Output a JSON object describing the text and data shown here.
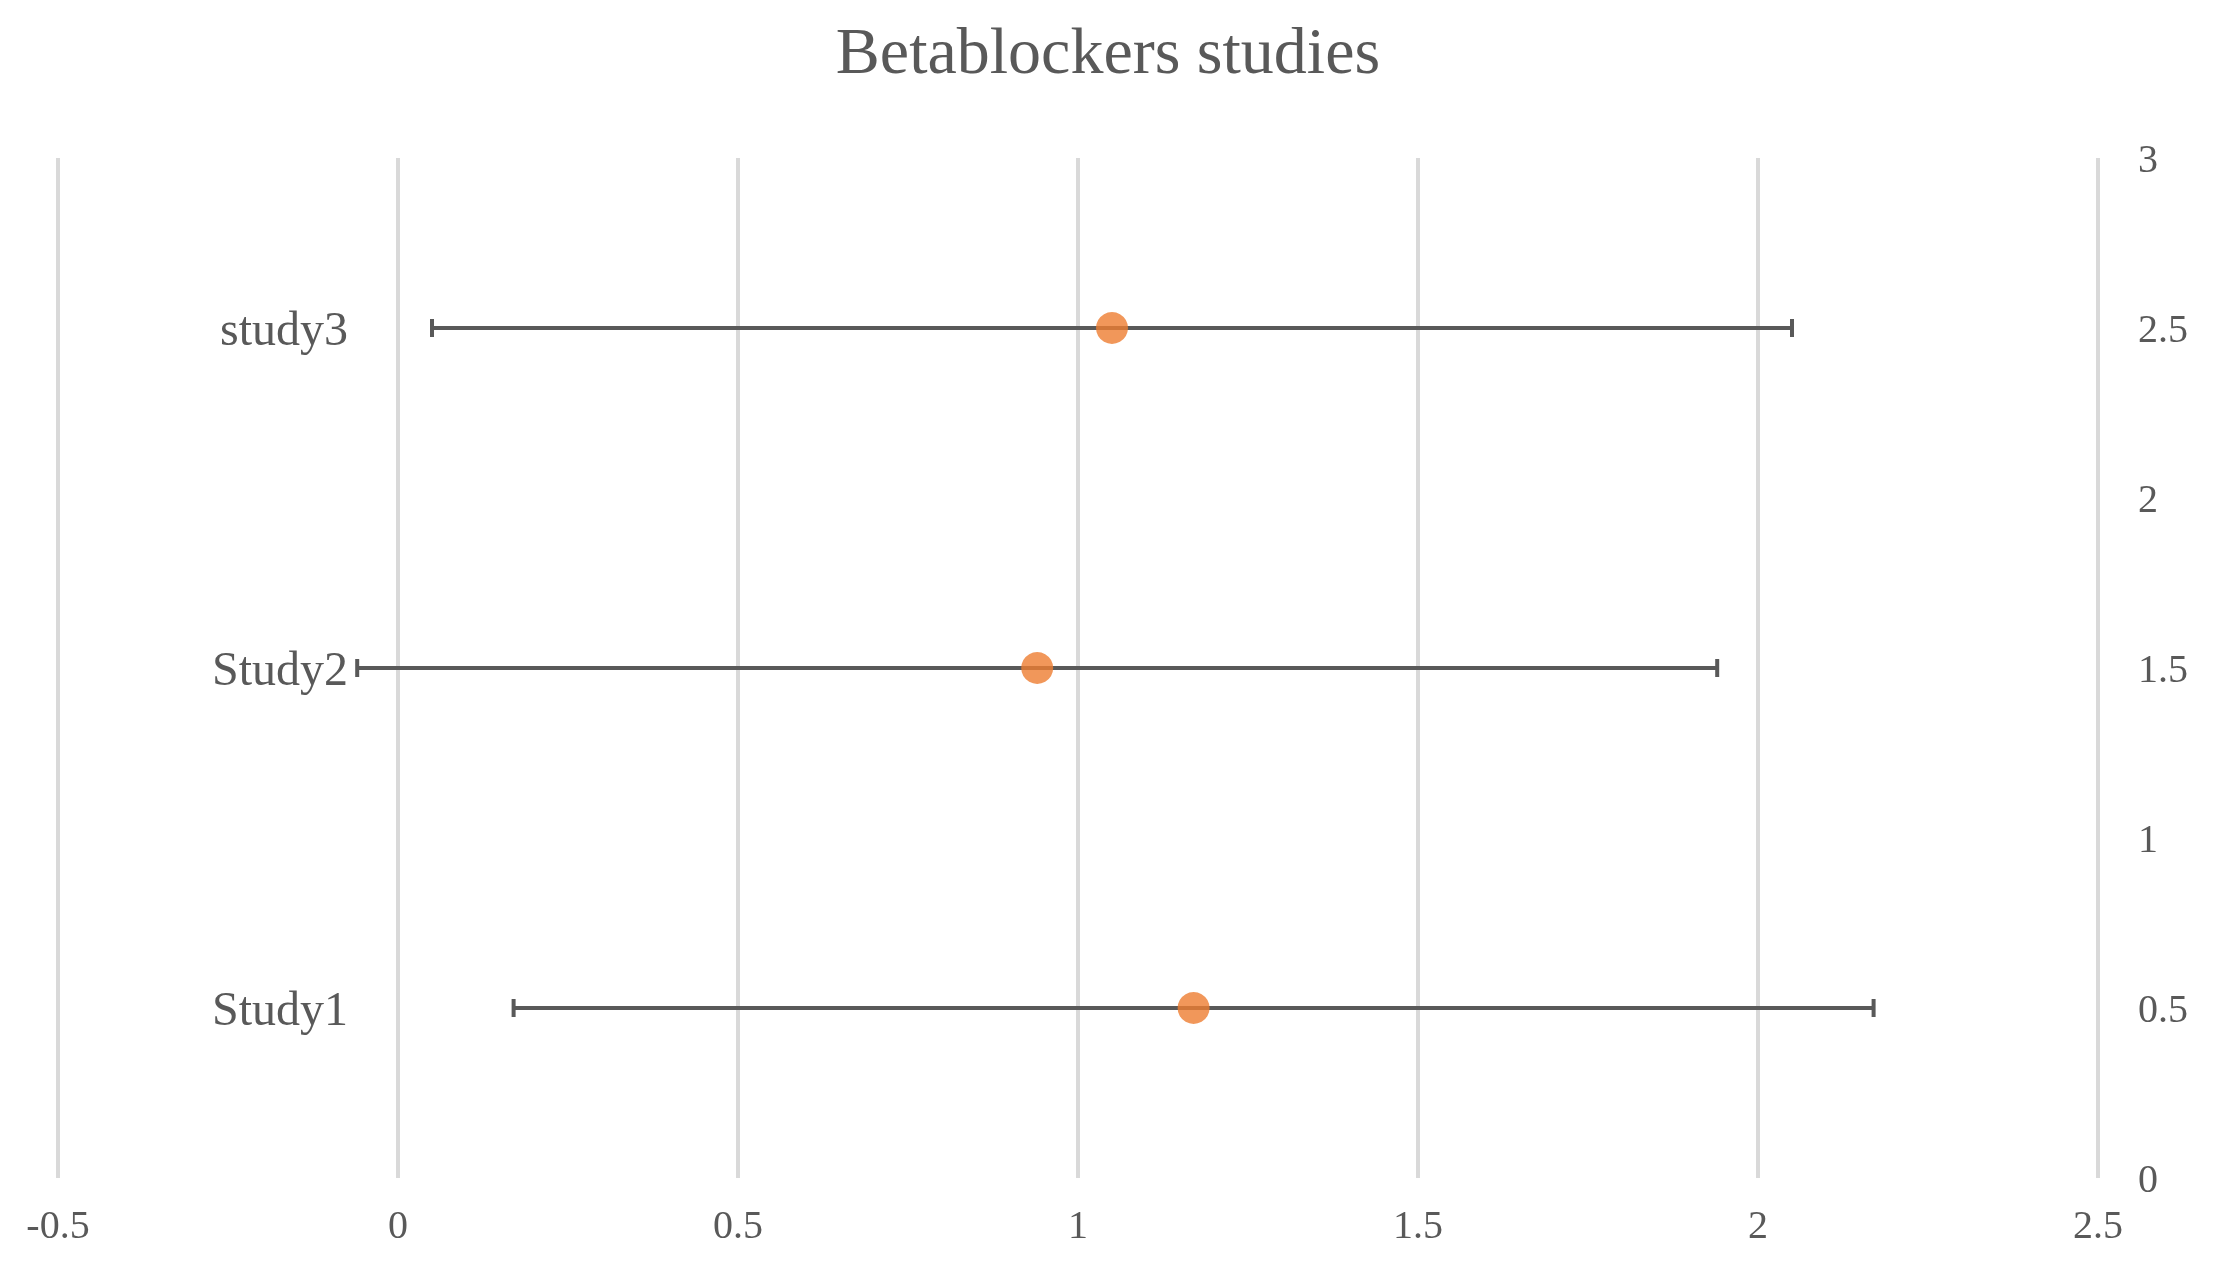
{
  "chart_data": {
    "type": "scatter",
    "title": "Betablockers studies",
    "x": [
      1.17,
      0.94,
      1.05
    ],
    "series": [
      {
        "color": "#ed7d31",
        "values": [
          0.5,
          1.5,
          2.5
        ],
        "xerrors": [
          [
            0.17,
            2.17
          ],
          [
            -0.06,
            1.94
          ],
          [
            0.05,
            2.05
          ]
        ]
      }
    ],
    "annotations": [
      "Study1",
      "Study2",
      "study3"
    ],
    "xlim": [
      -0.5,
      2.5
    ],
    "xticks": [
      -0.5,
      0,
      0.5,
      1,
      1.5,
      2,
      2.5
    ],
    "ylim": [
      0,
      3
    ],
    "yticks": [
      0,
      0.5,
      1,
      1.5,
      2,
      2.5,
      3
    ],
    "grid": "x",
    "marker": "circle"
  }
}
